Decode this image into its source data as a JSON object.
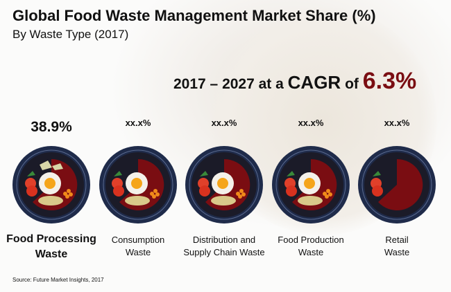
{
  "title": "Global Food Waste Management Market Share (%)",
  "subtitle": "By Waste Type (2017)",
  "cagr": {
    "prefix": "2017 – 2027 at a",
    "word": "CAGR",
    "of": "of",
    "value": "6.3%"
  },
  "source": "Source: Future Market Insights, 2017",
  "colors": {
    "accent": "#7a0d12",
    "plate_ring": "#1f2b4a",
    "plate_inner": "#1b1b28"
  },
  "chart_data": {
    "type": "pie",
    "title": "Global Food Waste Management Market Share (%)",
    "subtitle": "By Waste Type (2017)",
    "categories": [
      "Food Processing Waste",
      "Consumption Waste",
      "Distribution and Supply Chain Waste",
      "Food Production Waste",
      "Retail Waste"
    ],
    "values": [
      38.9,
      null,
      null,
      null,
      null
    ],
    "value_labels": [
      "38.9%",
      "xx.x%",
      "xx.x%",
      "xx.x%",
      "xx.x%"
    ],
    "label_lines": [
      [
        "Food Processing",
        "Waste"
      ],
      [
        "Consumption",
        "Waste"
      ],
      [
        "Distribution and",
        "Supply Chain Waste"
      ],
      [
        "Food Production",
        "Waste"
      ],
      [
        "Retail",
        "Waste"
      ]
    ]
  }
}
